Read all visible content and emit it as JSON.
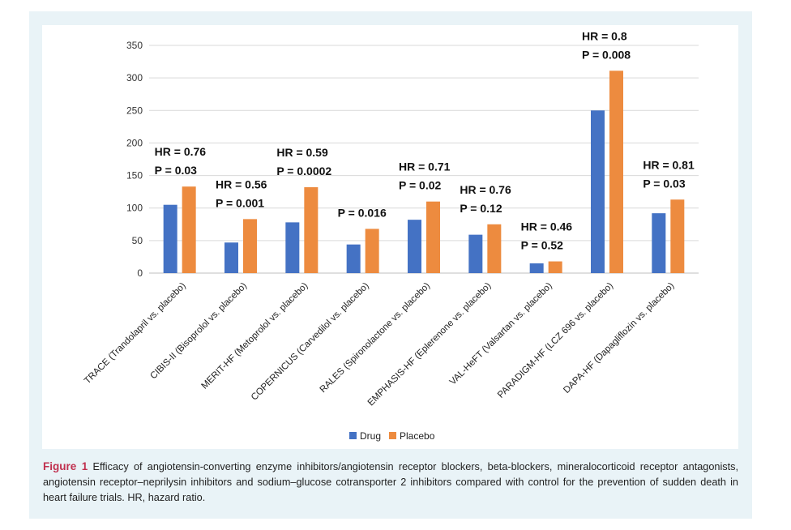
{
  "colors": {
    "drug": "#4472c4",
    "placebo": "#ed8b3f",
    "frame": "#e9f3f7",
    "caption_label": "#c0304f"
  },
  "chart_data": {
    "type": "bar",
    "title": "",
    "xlabel": "",
    "ylabel": "",
    "ylim": [
      0,
      350
    ],
    "yticks": [
      0,
      50,
      100,
      150,
      200,
      250,
      300,
      350
    ],
    "grid": true,
    "legend_position": "bottom-center",
    "categories": [
      "TRACE (Trandolapril vs. placebo)",
      "CIBIS-II (Bisoprolol vs. placebo)",
      "MERIT-HF (Metoprolol vs. placebo)",
      "COPERNICUS (Carvedilol vs. placebo)",
      "RALES (Spironolactone vs. placebo)",
      "EMPHASIS-HF (Eplerenone vs. placebo)",
      "VAL-HeFT (Valsartan vs. placebo)",
      "PARADIGM-HF (LCZ 696 vs. placebo)",
      "DAPA-HF (Dapagliflozin vs. placebo)"
    ],
    "series": [
      {
        "name": "Drug",
        "values": [
          105,
          47,
          78,
          44,
          82,
          59,
          15,
          250,
          92
        ]
      },
      {
        "name": "Placebo",
        "values": [
          133,
          83,
          132,
          68,
          110,
          75,
          18,
          311,
          113
        ]
      }
    ],
    "annotations": [
      {
        "hr": "HR = 0.76",
        "p": "P = 0.03"
      },
      {
        "hr": "HR = 0.56",
        "p": "P = 0.001"
      },
      {
        "hr": "HR = 0.59",
        "p": "P = 0.0002"
      },
      {
        "hr": "",
        "p": "P = 0.016"
      },
      {
        "hr": "HR = 0.71",
        "p": "P = 0.02"
      },
      {
        "hr": "HR = 0.76",
        "p": "P = 0.12"
      },
      {
        "hr": "HR = 0.46",
        "p": "P = 0.52"
      },
      {
        "hr": "HR = 0.8",
        "p": "P = 0.008"
      },
      {
        "hr": "HR = 0.81",
        "p": "P = 0.03"
      }
    ]
  },
  "caption": {
    "label": "Figure 1",
    "text": "Efficacy of angiotensin-converting enzyme inhibitors/angiotensin receptor blockers, beta-blockers, mineralocorticoid receptor antagonists, angiotensin receptor–neprilysin inhibitors and sodium–glucose cotransporter 2 inhibitors compared with control for the prevention of sudden death in heart failure trials. HR, hazard ratio."
  }
}
